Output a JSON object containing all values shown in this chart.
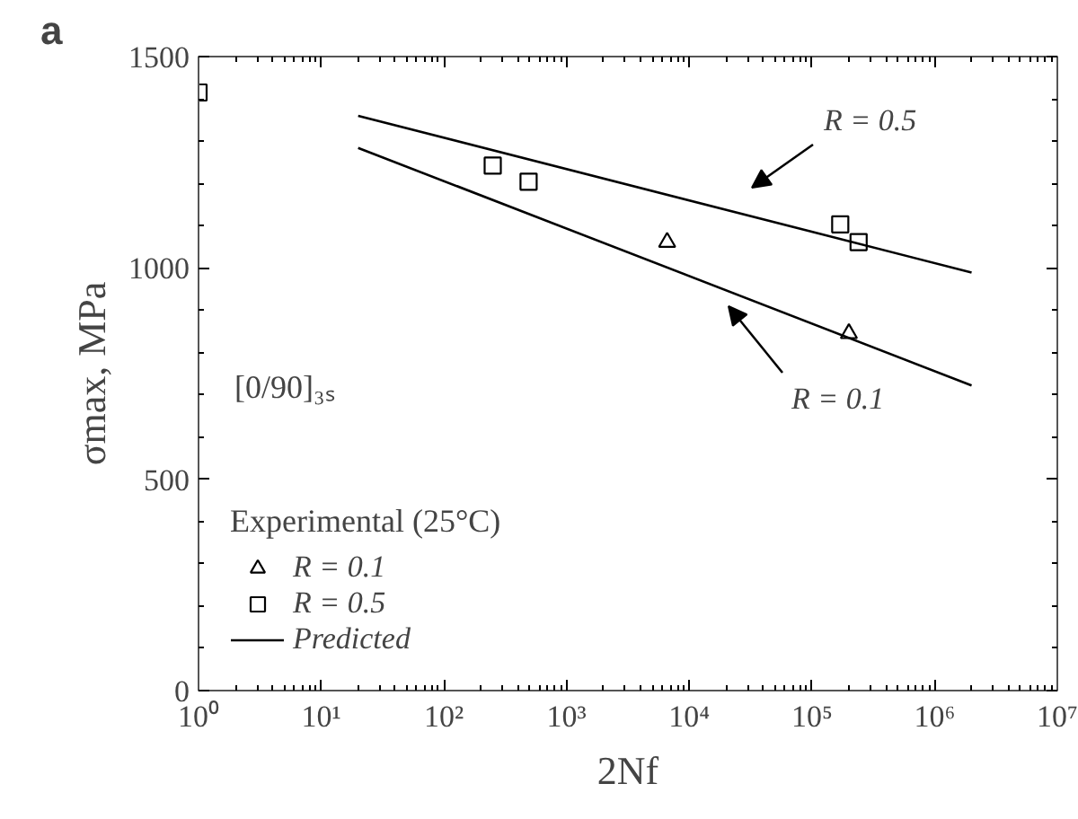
{
  "chart_data": {
    "type": "scatter",
    "xlabel": "2Nf",
    "ylabel": "σmax, MPa",
    "log": "x",
    "xlim": [
      1,
      10000000
    ],
    "ylim": [
      0,
      1500
    ],
    "xticks": [
      {
        "value": 1,
        "label": "10⁰"
      },
      {
        "value": 10,
        "label": "10¹"
      },
      {
        "value": 100,
        "label": "10²"
      },
      {
        "value": 1000,
        "label": "10³"
      },
      {
        "value": 10000,
        "label": "10⁴"
      },
      {
        "value": 100000,
        "label": "10⁵"
      },
      {
        "value": 1000000,
        "label": "10⁶"
      },
      {
        "value": 10000000,
        "label": "10⁷"
      }
    ],
    "yticks": [
      0,
      500,
      1000,
      1500
    ],
    "grid": false,
    "legend": "bottom left",
    "legend_title": "Experimental (25°C)",
    "series": [
      {
        "name": "R = 0.1",
        "marker": "triangle",
        "color": "#000000",
        "x": [
          6600,
          200000
        ],
        "values": [
          1061,
          845
        ]
      },
      {
        "name": "R = 0.5",
        "marker": "square",
        "color": "#000000",
        "x": [
          1,
          250,
          490,
          170000,
          240000
        ],
        "values": [
          1415,
          1242,
          1204,
          1103,
          1061
        ]
      },
      {
        "name": "Predicted",
        "type": "line",
        "marker": "none",
        "line_style": "solid",
        "color": "#000000",
        "x": [
          20,
          2000000
        ],
        "values": [
          1360,
          989
        ]
      },
      {
        "type": "line",
        "marker": "none",
        "line_style": "solid",
        "color": "#000000",
        "x": [
          20,
          2000000
        ],
        "values": [
          1284,
          722
        ]
      }
    ],
    "annotations": [
      "a",
      "R = 0.5",
      "R = 0.1",
      "[0/90]₃ₛ"
    ]
  }
}
